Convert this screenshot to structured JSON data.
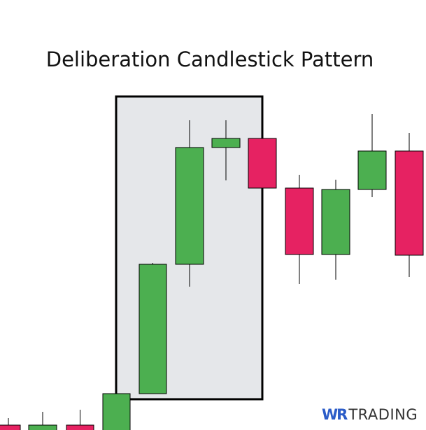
{
  "title": "Deliberation Candlestick Pattern",
  "logo": {
    "part1": "WR",
    "part2": "TRADING"
  },
  "colors": {
    "bullish": "#4caf50",
    "bearish": "#e62262",
    "highlight_box": "#e5e7ea",
    "outline": "#000000"
  },
  "candles": [
    {
      "direction": "bearish"
    },
    {
      "direction": "bullish"
    },
    {
      "direction": "bearish"
    },
    {
      "direction": "bullish"
    },
    {
      "direction": "bullish",
      "highlighted": true
    },
    {
      "direction": "bullish",
      "highlighted": true
    },
    {
      "direction": "bullish",
      "highlighted": true
    },
    {
      "direction": "bearish"
    },
    {
      "direction": "bearish"
    },
    {
      "direction": "bullish"
    },
    {
      "direction": "bullish"
    },
    {
      "direction": "bearish"
    }
  ]
}
